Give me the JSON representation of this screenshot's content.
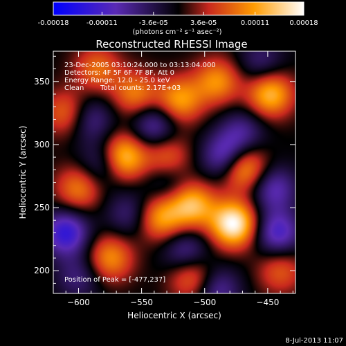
{
  "chart_data": {
    "type": "heatmap",
    "title": "Reconstructed RHESSI Image",
    "xlabel": "Heliocentric X (arcsec)",
    "ylabel": "Heliocentric Y (arcsec)",
    "xlim": [
      -620,
      -428
    ],
    "ylim": [
      182,
      374
    ],
    "x_ticks": [
      -600,
      -550,
      -500,
      -450
    ],
    "y_ticks": [
      200,
      250,
      300,
      350
    ],
    "colorbar": {
      "range": [
        -0.00018,
        0.00018
      ],
      "tick_values": [
        -0.00018,
        -0.00011,
        -3.6e-05,
        3.6e-05,
        0.00011,
        0.00018
      ],
      "tick_labels": [
        "-0.00018",
        "-0.00011",
        "-3.6e-05",
        "3.6e-05",
        "0.00011",
        "0.00018"
      ],
      "unit_label": "(photons cm⁻² s⁻¹ asec⁻²)",
      "colors": [
        "#0000ff",
        "#5a2ab4",
        "#000000",
        "#c8281e",
        "#ff9b00",
        "#ffffff"
      ]
    },
    "annotations": [
      "23-Dec-2005 03:10:24.000 to 03:13:04.000",
      "Detectors: 4F 5F 6F 7F 8F, Att 0",
      "Energy Range: 12.0 - 25.0 keV",
      "Clean",
      "Total counts: 2.17E+03"
    ],
    "peak_label": "Position of Peak = [-477,237]",
    "peak": [
      -477,
      237
    ],
    "sources": [
      {
        "x": -477,
        "y": 237,
        "v": 0.00018
      },
      {
        "x": -565,
        "y": 290,
        "v": 0.00015
      },
      {
        "x": -470,
        "y": 282,
        "v": 0.00014
      },
      {
        "x": -448,
        "y": 340,
        "v": 0.00013
      },
      {
        "x": -535,
        "y": 242,
        "v": 0.00011
      },
      {
        "x": -510,
        "y": 252,
        "v": 0.00013
      },
      {
        "x": -575,
        "y": 210,
        "v": 0.0001
      },
      {
        "x": -600,
        "y": 265,
        "v": 9e-05
      },
      {
        "x": -520,
        "y": 335,
        "v": 0.00011
      },
      {
        "x": -490,
        "y": 350,
        "v": 0.0001
      },
      {
        "x": -510,
        "y": 195,
        "v": 9e-05
      },
      {
        "x": -555,
        "y": 340,
        "v": 9e-05
      },
      {
        "x": -610,
        "y": 325,
        "v": 8e-05
      },
      {
        "x": -440,
        "y": 200,
        "v": 7e-05
      },
      {
        "x": -530,
        "y": 290,
        "v": 8e-05
      },
      {
        "x": -585,
        "y": 360,
        "v": 8e-05
      },
      {
        "x": -610,
        "y": 230,
        "v": -0.00013
      },
      {
        "x": -483,
        "y": 290,
        "v": -0.00012
      },
      {
        "x": -442,
        "y": 230,
        "v": -0.00011
      },
      {
        "x": -580,
        "y": 285,
        "v": -8e-05
      },
      {
        "x": -590,
        "y": 320,
        "v": -7e-05
      },
      {
        "x": -540,
        "y": 315,
        "v": -9e-05
      },
      {
        "x": -515,
        "y": 215,
        "v": -8e-05
      },
      {
        "x": -470,
        "y": 310,
        "v": -7e-05
      },
      {
        "x": -560,
        "y": 245,
        "v": -6e-05
      },
      {
        "x": -445,
        "y": 265,
        "v": -9e-05
      },
      {
        "x": -600,
        "y": 195,
        "v": -6e-05
      },
      {
        "x": -490,
        "y": 185,
        "v": -8e-05
      },
      {
        "x": -530,
        "y": 270,
        "v": -5e-05
      },
      {
        "x": -455,
        "y": 365,
        "v": -6e-05
      }
    ]
  },
  "footer": {
    "date": "8-Jul-2013 11:07"
  }
}
